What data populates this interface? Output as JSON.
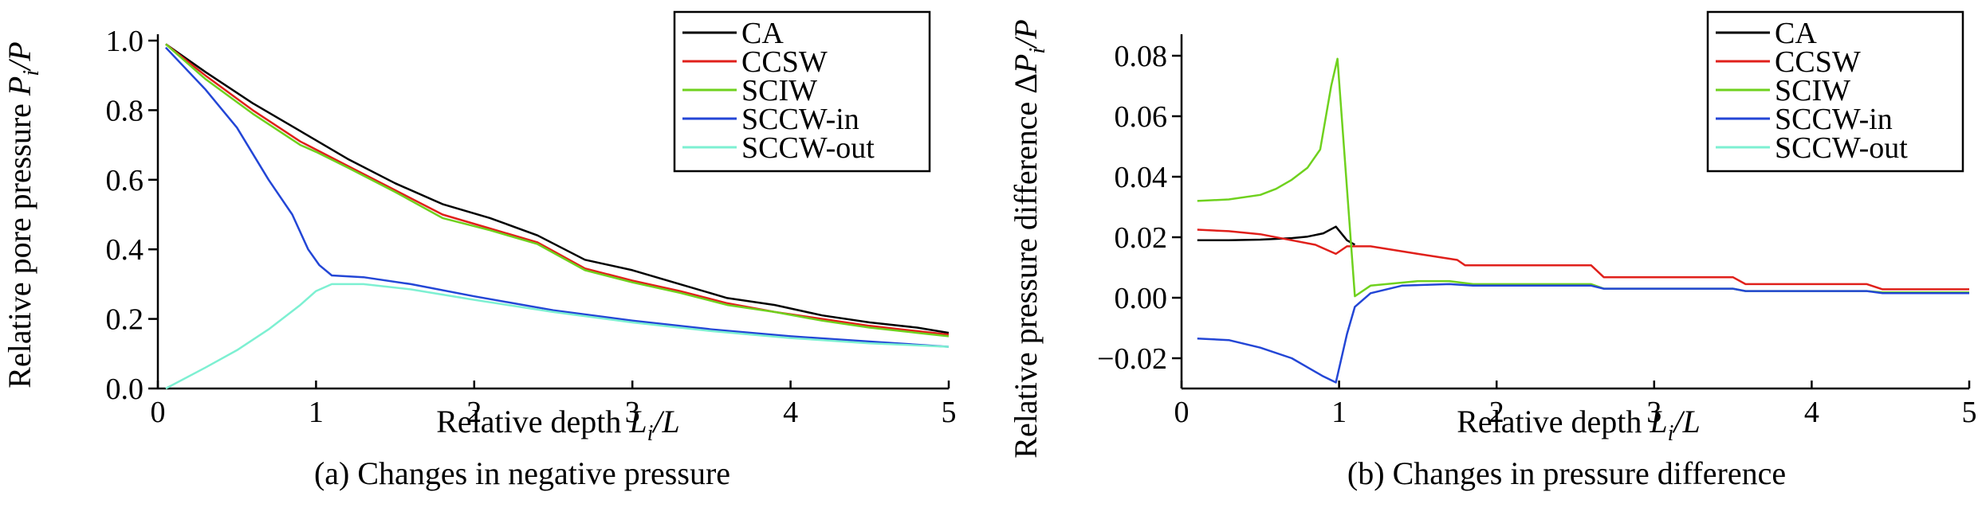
{
  "chart_data": [
    {
      "type": "line",
      "caption": "(a) Changes in negative pressure",
      "xlabel_main": "Relative depth ",
      "xlabel_sym": "L",
      "xlabel_sub": "i",
      "xlabel_tail": "/L",
      "ylabel_main": "Relative pore pressure ",
      "ylabel_sym": "P",
      "ylabel_sub": "i",
      "ylabel_tail": "/P",
      "xlim": [
        0,
        5
      ],
      "ylim": [
        0,
        1.0
      ],
      "xticks": [
        0,
        1,
        2,
        3,
        4,
        5
      ],
      "yticks": [
        0,
        0.2,
        0.4,
        0.6,
        0.8,
        1.0
      ],
      "xtick_labels": [
        "0",
        "1",
        "2",
        "3",
        "4",
        "5"
      ],
      "ytick_labels": [
        "0.0",
        "0.2",
        "0.4",
        "0.6",
        "0.8",
        "1.0"
      ],
      "legend_position": "top-right",
      "series": [
        {
          "name": "CA",
          "color": "#000000",
          "x": [
            0.05,
            0.3,
            0.6,
            0.9,
            1.2,
            1.5,
            1.8,
            2.1,
            2.4,
            2.7,
            3.0,
            3.3,
            3.6,
            3.9,
            4.2,
            4.5,
            4.8,
            5.0
          ],
          "y": [
            0.99,
            0.91,
            0.82,
            0.74,
            0.66,
            0.59,
            0.53,
            0.49,
            0.44,
            0.37,
            0.34,
            0.3,
            0.26,
            0.24,
            0.21,
            0.19,
            0.175,
            0.16
          ]
        },
        {
          "name": "CCSW",
          "color": "#e0201b",
          "x": [
            0.05,
            0.3,
            0.6,
            0.9,
            1.2,
            1.5,
            1.8,
            2.1,
            2.4,
            2.7,
            3.0,
            3.3,
            3.6,
            3.9,
            4.2,
            4.5,
            4.8,
            5.0
          ],
          "y": [
            0.99,
            0.9,
            0.8,
            0.71,
            0.64,
            0.57,
            0.5,
            0.46,
            0.42,
            0.345,
            0.31,
            0.28,
            0.245,
            0.22,
            0.2,
            0.18,
            0.165,
            0.155
          ]
        },
        {
          "name": "SCIW",
          "color": "#6fd11e",
          "x": [
            0.05,
            0.3,
            0.6,
            0.9,
            1.0,
            1.2,
            1.5,
            1.8,
            2.1,
            2.4,
            2.7,
            3.0,
            3.3,
            3.6,
            3.9,
            4.2,
            4.5,
            4.8,
            5.0
          ],
          "y": [
            0.99,
            0.89,
            0.79,
            0.7,
            0.68,
            0.635,
            0.565,
            0.49,
            0.455,
            0.415,
            0.34,
            0.305,
            0.275,
            0.24,
            0.22,
            0.195,
            0.175,
            0.16,
            0.15
          ]
        },
        {
          "name": "SCCW-in",
          "color": "#2346d6",
          "x": [
            0.05,
            0.3,
            0.5,
            0.7,
            0.85,
            0.95,
            1.02,
            1.1,
            1.3,
            1.6,
            2.0,
            2.5,
            3.0,
            3.5,
            4.0,
            4.5,
            5.0
          ],
          "y": [
            0.98,
            0.86,
            0.75,
            0.6,
            0.5,
            0.4,
            0.355,
            0.325,
            0.32,
            0.3,
            0.265,
            0.225,
            0.195,
            0.17,
            0.15,
            0.135,
            0.12
          ]
        },
        {
          "name": "SCCW-out",
          "color": "#7df0d2",
          "x": [
            0.05,
            0.3,
            0.5,
            0.7,
            0.9,
            1.0,
            1.1,
            1.3,
            1.6,
            2.0,
            2.5,
            3.0,
            3.5,
            4.0,
            4.5,
            5.0
          ],
          "y": [
            0.0,
            0.06,
            0.11,
            0.17,
            0.24,
            0.28,
            0.3,
            0.3,
            0.285,
            0.255,
            0.22,
            0.19,
            0.165,
            0.145,
            0.13,
            0.12
          ]
        }
      ]
    },
    {
      "type": "line",
      "caption": "(b) Changes in pressure difference",
      "xlabel_main": "Relative depth ",
      "xlabel_sym": "L",
      "xlabel_sub": "i",
      "xlabel_tail": "/L",
      "ylabel_main": "Relative pressure difference Δ",
      "ylabel_sym": "P",
      "ylabel_sub": "i",
      "ylabel_tail": "/P",
      "xlim": [
        0,
        5
      ],
      "ylim": [
        -0.03,
        0.085
      ],
      "xticks": [
        0,
        1,
        2,
        3,
        4,
        5
      ],
      "yticks": [
        -0.02,
        0.0,
        0.02,
        0.04,
        0.06,
        0.08
      ],
      "xtick_labels": [
        "0",
        "1",
        "2",
        "3",
        "4",
        "5"
      ],
      "ytick_labels": [
        "−0.02",
        "0.00",
        "0.02",
        "0.04",
        "0.06",
        "0.08"
      ],
      "legend_position": "top-right",
      "series": [
        {
          "name": "CA",
          "color": "#000000",
          "x": [
            0.1,
            0.3,
            0.5,
            0.7,
            0.8,
            0.9,
            0.98,
            1.05,
            1.1
          ],
          "y": [
            0.019,
            0.019,
            0.0192,
            0.0197,
            0.0202,
            0.0213,
            0.0235,
            0.019,
            0.0175
          ]
        },
        {
          "name": "CCSW",
          "color": "#e0201b",
          "x": [
            0.1,
            0.3,
            0.5,
            0.7,
            0.85,
            0.98,
            1.05,
            1.2,
            1.5,
            1.75,
            1.8,
            2.0,
            2.6,
            2.68,
            3.5,
            3.58,
            4.35,
            4.45,
            5.0
          ],
          "y": [
            0.0225,
            0.022,
            0.021,
            0.019,
            0.0175,
            0.0145,
            0.017,
            0.017,
            0.0145,
            0.0125,
            0.0107,
            0.0107,
            0.0107,
            0.0068,
            0.0068,
            0.0045,
            0.0045,
            0.0028,
            0.0028
          ]
        },
        {
          "name": "SCIW",
          "color": "#6fd11e",
          "x": [
            0.1,
            0.3,
            0.5,
            0.6,
            0.7,
            0.8,
            0.88,
            0.95,
            0.99,
            1.1,
            1.2,
            1.5,
            1.7,
            1.85,
            2.6,
            2.68,
            3.5,
            3.58,
            4.35,
            4.45,
            5.0
          ],
          "y": [
            0.032,
            0.0325,
            0.034,
            0.036,
            0.039,
            0.043,
            0.049,
            0.07,
            0.079,
            0.0005,
            0.004,
            0.0055,
            0.0055,
            0.0045,
            0.0045,
            0.003,
            0.003,
            0.0022,
            0.0022,
            0.0018,
            0.0018
          ]
        },
        {
          "name": "SCCW-in",
          "color": "#2346d6",
          "x": [
            0.1,
            0.3,
            0.5,
            0.7,
            0.8,
            0.9,
            0.98,
            1.05,
            1.1,
            1.2,
            1.4,
            1.7,
            1.85,
            2.6,
            2.68,
            3.5,
            3.58,
            4.35,
            4.45,
            5.0
          ],
          "y": [
            -0.0135,
            -0.014,
            -0.0165,
            -0.02,
            -0.023,
            -0.026,
            -0.028,
            -0.012,
            -0.003,
            0.0015,
            0.004,
            0.0045,
            0.004,
            0.004,
            0.003,
            0.003,
            0.0022,
            0.0022,
            0.0015,
            0.0015
          ]
        },
        {
          "name": "SCCW-out",
          "color": "#7df0d2",
          "x": [],
          "y": []
        }
      ]
    }
  ]
}
